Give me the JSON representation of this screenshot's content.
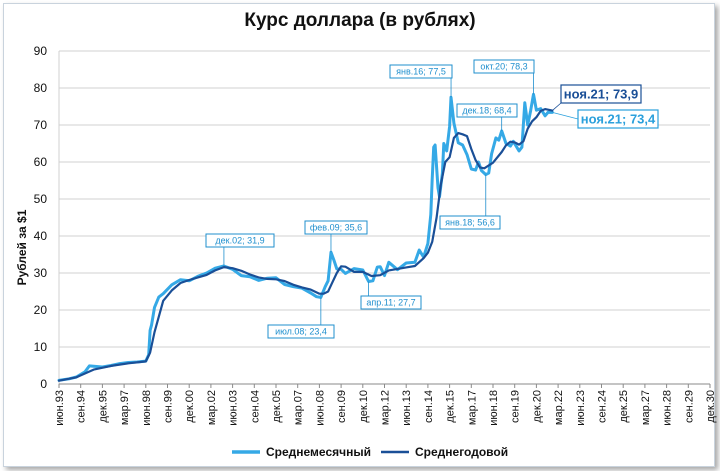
{
  "chart_data": {
    "type": "line",
    "title": "Курс доллара (в рублях)",
    "xlabel": "",
    "ylabel": "Рублей за $1",
    "ylim": [
      0,
      90
    ],
    "yticks": [
      0,
      10,
      20,
      30,
      40,
      50,
      60,
      70,
      80,
      90
    ],
    "xlim": [
      "1993-06",
      "2030-12"
    ],
    "xtick_labels": [
      "июн.93",
      "сен.94",
      "дек.95",
      "мар.97",
      "июн.98",
      "сен.99",
      "дек.00",
      "мар.02",
      "июн.03",
      "сен.04",
      "дек.05",
      "мар.07",
      "июн.08",
      "сен.09",
      "дек.10",
      "мар.12",
      "июн.13",
      "сен.14",
      "дек.15",
      "мар.17",
      "июн.18",
      "сен.19",
      "дек.20",
      "мар.22",
      "июн.23",
      "сен.24",
      "дек.25",
      "мар.27",
      "июн.28",
      "сен.29",
      "дек.30"
    ],
    "grid": true,
    "legend_position": "bottom",
    "series": [
      {
        "name": "Среднемесячный",
        "color": "#35a9e6",
        "points": [
          [
            "1993-06",
            1.0
          ],
          [
            "1994-01",
            1.4
          ],
          [
            "1994-06",
            1.9
          ],
          [
            "1994-12",
            3.3
          ],
          [
            "1995-03",
            4.9
          ],
          [
            "1995-06",
            4.8
          ],
          [
            "1995-12",
            4.6
          ],
          [
            "1996-06",
            5.0
          ],
          [
            "1996-12",
            5.5
          ],
          [
            "1997-06",
            5.8
          ],
          [
            "1997-12",
            5.95
          ],
          [
            "1998-06",
            6.2
          ],
          [
            "1998-08",
            7.9
          ],
          [
            "1998-09",
            14.5
          ],
          [
            "1998-10",
            16.0
          ],
          [
            "1998-12",
            20.7
          ],
          [
            "1999-03",
            23.5
          ],
          [
            "1999-06",
            24.4
          ],
          [
            "1999-12",
            26.8
          ],
          [
            "2000-06",
            28.2
          ],
          [
            "2000-12",
            27.9
          ],
          [
            "2001-06",
            29.1
          ],
          [
            "2001-12",
            30.0
          ],
          [
            "2002-06",
            31.3
          ],
          [
            "2002-12",
            31.9
          ],
          [
            "2003-06",
            31.0
          ],
          [
            "2003-12",
            29.3
          ],
          [
            "2004-06",
            29.0
          ],
          [
            "2004-12",
            28.0
          ],
          [
            "2005-06",
            28.6
          ],
          [
            "2005-12",
            28.7
          ],
          [
            "2006-06",
            26.9
          ],
          [
            "2006-12",
            26.3
          ],
          [
            "2007-06",
            25.9
          ],
          [
            "2007-12",
            24.6
          ],
          [
            "2008-04",
            23.6
          ],
          [
            "2008-07",
            23.4
          ],
          [
            "2008-10",
            26.3
          ],
          [
            "2008-12",
            27.9
          ],
          [
            "2009-02",
            35.6
          ],
          [
            "2009-04",
            33.5
          ],
          [
            "2009-06",
            31.1
          ],
          [
            "2009-09",
            31.0
          ],
          [
            "2009-12",
            29.9
          ],
          [
            "2010-06",
            31.2
          ],
          [
            "2010-12",
            30.8
          ],
          [
            "2011-04",
            27.7
          ],
          [
            "2011-07",
            27.9
          ],
          [
            "2011-10",
            31.6
          ],
          [
            "2011-12",
            31.7
          ],
          [
            "2012-03",
            29.3
          ],
          [
            "2012-06",
            32.9
          ],
          [
            "2012-12",
            30.9
          ],
          [
            "2013-06",
            32.7
          ],
          [
            "2013-12",
            32.9
          ],
          [
            "2014-03",
            36.2
          ],
          [
            "2014-06",
            34.3
          ],
          [
            "2014-09",
            38.0
          ],
          [
            "2014-11",
            45.8
          ],
          [
            "2014-12",
            55.4
          ],
          [
            "2015-01",
            64.0
          ],
          [
            "2015-02",
            64.6
          ],
          [
            "2015-04",
            53.0
          ],
          [
            "2015-05",
            50.6
          ],
          [
            "2015-07",
            57.0
          ],
          [
            "2015-08",
            65.0
          ],
          [
            "2015-10",
            63.0
          ],
          [
            "2015-12",
            69.6
          ],
          [
            "2016-01",
            77.5
          ],
          [
            "2016-03",
            70.5
          ],
          [
            "2016-06",
            65.2
          ],
          [
            "2016-09",
            64.6
          ],
          [
            "2016-12",
            62.0
          ],
          [
            "2017-03",
            58.1
          ],
          [
            "2017-06",
            57.8
          ],
          [
            "2017-08",
            60.0
          ],
          [
            "2017-10",
            57.7
          ],
          [
            "2018-01",
            56.6
          ],
          [
            "2018-03",
            57.0
          ],
          [
            "2018-05",
            62.2
          ],
          [
            "2018-08",
            66.5
          ],
          [
            "2018-10",
            65.9
          ],
          [
            "2018-12",
            68.4
          ],
          [
            "2019-03",
            65.0
          ],
          [
            "2019-06",
            64.3
          ],
          [
            "2019-08",
            65.6
          ],
          [
            "2019-12",
            63.0
          ],
          [
            "2020-02",
            64.0
          ],
          [
            "2020-04",
            76.0
          ],
          [
            "2020-06",
            70.0
          ],
          [
            "2020-08",
            73.8
          ],
          [
            "2020-10",
            78.3
          ],
          [
            "2020-12",
            74.0
          ],
          [
            "2021-03",
            74.4
          ],
          [
            "2021-06",
            72.5
          ],
          [
            "2021-08",
            73.4
          ],
          [
            "2021-11",
            73.4
          ]
        ]
      },
      {
        "name": "Среднегодовой",
        "color": "#1a4f97",
        "points": [
          [
            "1993-06",
            0.9
          ],
          [
            "1994-06",
            1.8
          ],
          [
            "1995-06",
            3.9
          ],
          [
            "1996-06",
            4.9
          ],
          [
            "1997-06",
            5.6
          ],
          [
            "1998-06",
            6.1
          ],
          [
            "1998-09",
            8.5
          ],
          [
            "1998-12",
            14.0
          ],
          [
            "1999-06",
            22.5
          ],
          [
            "1999-12",
            25.3
          ],
          [
            "2000-06",
            27.3
          ],
          [
            "2000-12",
            28.1
          ],
          [
            "2001-06",
            28.8
          ],
          [
            "2001-12",
            29.5
          ],
          [
            "2002-06",
            30.7
          ],
          [
            "2002-12",
            31.6
          ],
          [
            "2003-06",
            31.3
          ],
          [
            "2003-12",
            30.6
          ],
          [
            "2004-06",
            29.6
          ],
          [
            "2004-12",
            28.8
          ],
          [
            "2005-06",
            28.4
          ],
          [
            "2005-12",
            28.3
          ],
          [
            "2006-06",
            27.8
          ],
          [
            "2006-12",
            26.8
          ],
          [
            "2007-06",
            26.1
          ],
          [
            "2007-12",
            25.5
          ],
          [
            "2008-06",
            24.4
          ],
          [
            "2008-09",
            24.4
          ],
          [
            "2008-12",
            25.0
          ],
          [
            "2009-03",
            27.5
          ],
          [
            "2009-06",
            30.0
          ],
          [
            "2009-09",
            31.8
          ],
          [
            "2009-12",
            31.7
          ],
          [
            "2010-06",
            30.3
          ],
          [
            "2010-12",
            30.3
          ],
          [
            "2011-06",
            29.2
          ],
          [
            "2011-12",
            29.4
          ],
          [
            "2012-06",
            30.7
          ],
          [
            "2012-12",
            31.1
          ],
          [
            "2013-06",
            31.5
          ],
          [
            "2013-12",
            31.9
          ],
          [
            "2014-06",
            34.0
          ],
          [
            "2014-09",
            35.5
          ],
          [
            "2014-12",
            38.4
          ],
          [
            "2015-03",
            45.0
          ],
          [
            "2015-06",
            54.0
          ],
          [
            "2015-09",
            60.0
          ],
          [
            "2015-12",
            61.3
          ],
          [
            "2016-03",
            66.5
          ],
          [
            "2016-06",
            67.8
          ],
          [
            "2016-09",
            67.5
          ],
          [
            "2016-12",
            67.0
          ],
          [
            "2017-03",
            63.5
          ],
          [
            "2017-06",
            60.5
          ],
          [
            "2017-09",
            58.5
          ],
          [
            "2017-12",
            58.3
          ],
          [
            "2018-06",
            59.8
          ],
          [
            "2018-12",
            62.7
          ],
          [
            "2019-03",
            64.5
          ],
          [
            "2019-06",
            65.5
          ],
          [
            "2019-09",
            65.3
          ],
          [
            "2019-12",
            64.7
          ],
          [
            "2020-03",
            65.6
          ],
          [
            "2020-06",
            69.0
          ],
          [
            "2020-09",
            71.0
          ],
          [
            "2020-12",
            72.1
          ],
          [
            "2021-03",
            73.8
          ],
          [
            "2021-06",
            74.3
          ],
          [
            "2021-11",
            73.9
          ]
        ]
      }
    ],
    "annotations": [
      {
        "text": "дек.02; 31,9"
      },
      {
        "text": "июл.08; 23,4"
      },
      {
        "text": "фев.09; 35,6"
      },
      {
        "text": "апр.11; 27,7"
      },
      {
        "text": "янв.16; 77,5"
      },
      {
        "text": "янв.18; 56,6"
      },
      {
        "text": "дек.18; 68,4"
      },
      {
        "text": "окт.20; 78,3"
      },
      {
        "text": "ноя.21; 73,9"
      },
      {
        "text": "ноя.21; 73,4"
      }
    ]
  }
}
